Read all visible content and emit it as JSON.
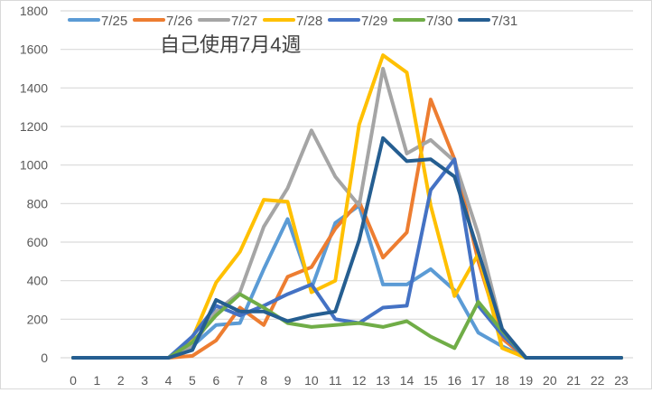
{
  "chart_data": {
    "type": "line",
    "title": "自己使用7月4週",
    "xlabel": "",
    "ylabel": "",
    "ylim": [
      0,
      1800
    ],
    "yticks": [
      0,
      200,
      400,
      600,
      800,
      1000,
      1200,
      1400,
      1600,
      1800
    ],
    "grid": true,
    "legend_position": "top",
    "categories": [
      "0",
      "1",
      "2",
      "3",
      "4",
      "5",
      "6",
      "7",
      "8",
      "9",
      "10",
      "11",
      "12",
      "13",
      "14",
      "15",
      "16",
      "17",
      "18",
      "19",
      "20",
      "21",
      "22",
      "23"
    ],
    "series": [
      {
        "name": "7/25",
        "color": "#5B9BD5",
        "values": [
          0,
          0,
          0,
          0,
          0,
          60,
          170,
          180,
          460,
          720,
          360,
          700,
          790,
          380,
          380,
          460,
          350,
          130,
          60,
          0,
          0,
          0,
          0,
          0
        ]
      },
      {
        "name": "7/26",
        "color": "#ED7D31",
        "values": [
          0,
          0,
          0,
          0,
          0,
          10,
          90,
          260,
          170,
          420,
          470,
          670,
          810,
          520,
          650,
          1340,
          1030,
          500,
          100,
          0,
          0,
          0,
          0,
          0
        ]
      },
      {
        "name": "7/27",
        "color": "#A5A5A5",
        "values": [
          0,
          0,
          0,
          0,
          0,
          60,
          240,
          340,
          680,
          880,
          1180,
          940,
          790,
          1500,
          1060,
          1130,
          1020,
          640,
          150,
          0,
          0,
          0,
          0,
          0
        ]
      },
      {
        "name": "7/28",
        "color": "#FFC000",
        "values": [
          0,
          0,
          0,
          0,
          0,
          100,
          390,
          550,
          820,
          810,
          340,
          400,
          1210,
          1570,
          1480,
          790,
          320,
          540,
          50,
          0,
          0,
          0,
          0,
          0
        ]
      },
      {
        "name": "7/29",
        "color": "#4472C4",
        "values": [
          0,
          0,
          0,
          0,
          0,
          110,
          270,
          220,
          270,
          330,
          380,
          200,
          180,
          260,
          270,
          870,
          1030,
          270,
          120,
          0,
          0,
          0,
          0,
          0
        ]
      },
      {
        "name": "7/30",
        "color": "#70AD47",
        "values": [
          0,
          0,
          0,
          0,
          0,
          80,
          220,
          330,
          260,
          180,
          160,
          170,
          180,
          160,
          190,
          110,
          50,
          290,
          140,
          0,
          0,
          0,
          0,
          0
        ]
      },
      {
        "name": "7/31",
        "color": "#255E91",
        "values": [
          0,
          0,
          0,
          0,
          0,
          40,
          300,
          240,
          240,
          190,
          220,
          240,
          610,
          1140,
          1020,
          1030,
          940,
          550,
          150,
          0,
          0,
          0,
          0,
          0
        ]
      }
    ]
  }
}
